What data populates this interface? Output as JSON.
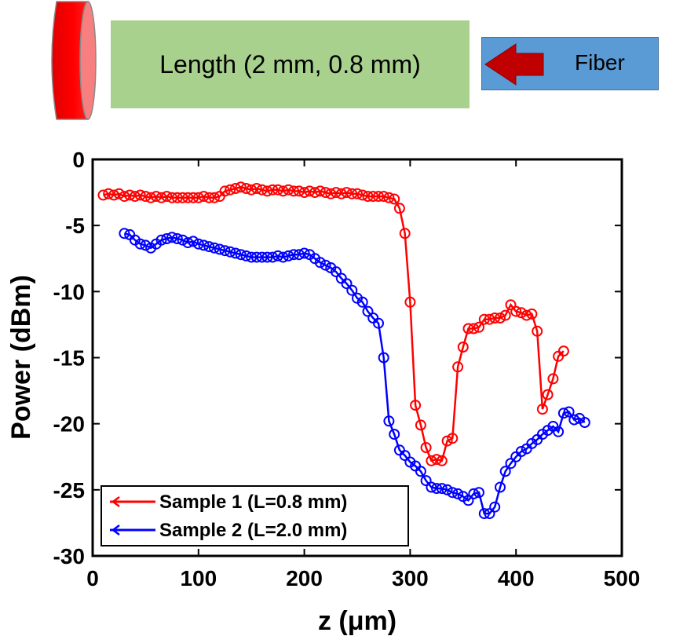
{
  "diagram": {
    "length_label": "Length (2 mm, 0.8 mm)",
    "fiber_label": "Fiber",
    "colors": {
      "disk": "#ff0000",
      "length_box": "#a9d18e",
      "fiber_box": "#5b9bd5",
      "arrow": "#c00000"
    }
  },
  "chart_data": {
    "type": "line",
    "xlabel": "z (μm)",
    "ylabel": "Power (dBm)",
    "xlim": [
      0,
      500
    ],
    "ylim": [
      -30,
      0
    ],
    "xticks": [
      0,
      100,
      200,
      300,
      400,
      500
    ],
    "yticks": [
      0,
      -5,
      -10,
      -15,
      -20,
      -25,
      -30
    ],
    "grid": false,
    "legend": "bottom-left",
    "series": [
      {
        "name": "Sample 1 (L=0.8 mm)",
        "color": "#ff0000",
        "x": [
          10,
          15,
          20,
          25,
          30,
          35,
          40,
          45,
          50,
          55,
          60,
          65,
          70,
          75,
          80,
          85,
          90,
          95,
          100,
          105,
          110,
          115,
          120,
          125,
          130,
          135,
          140,
          145,
          150,
          155,
          160,
          165,
          170,
          175,
          180,
          185,
          190,
          195,
          200,
          205,
          210,
          215,
          220,
          225,
          230,
          235,
          240,
          245,
          250,
          255,
          260,
          265,
          270,
          275,
          280,
          285,
          290,
          295,
          300,
          305,
          310,
          315,
          320,
          325,
          330,
          335,
          340,
          345,
          350,
          355,
          360,
          365,
          370,
          375,
          380,
          385,
          390,
          395,
          400,
          405,
          410,
          415,
          420,
          425,
          430,
          435,
          440,
          445
        ],
        "y": [
          -2.7,
          -2.6,
          -2.7,
          -2.6,
          -2.8,
          -2.7,
          -2.8,
          -2.7,
          -2.8,
          -2.9,
          -2.8,
          -2.9,
          -2.8,
          -2.9,
          -2.9,
          -2.9,
          -2.9,
          -2.9,
          -2.9,
          -2.8,
          -2.9,
          -2.9,
          -2.8,
          -2.4,
          -2.3,
          -2.2,
          -2.1,
          -2.2,
          -2.3,
          -2.2,
          -2.3,
          -2.4,
          -2.3,
          -2.3,
          -2.4,
          -2.3,
          -2.4,
          -2.4,
          -2.5,
          -2.4,
          -2.5,
          -2.4,
          -2.5,
          -2.6,
          -2.5,
          -2.6,
          -2.5,
          -2.6,
          -2.6,
          -2.7,
          -2.8,
          -2.8,
          -2.8,
          -2.8,
          -2.9,
          -3.0,
          -3.7,
          -5.6,
          -10.8,
          -18.6,
          -20.1,
          -21.8,
          -22.8,
          -22.7,
          -22.8,
          -21.3,
          -21.1,
          -15.7,
          -14.2,
          -12.8,
          -12.8,
          -12.7,
          -12.1,
          -12.1,
          -12.0,
          -12.0,
          -11.8,
          -11.0,
          -11.5,
          -11.6,
          -11.8,
          -11.7,
          -13.0,
          -18.9,
          -17.8,
          -16.6,
          -14.9,
          -14.5
        ]
      },
      {
        "name": "Sample 2 (L=2.0 mm)",
        "color": "#0000ff",
        "x": [
          30,
          35,
          40,
          45,
          50,
          55,
          60,
          65,
          70,
          75,
          80,
          85,
          90,
          95,
          100,
          105,
          110,
          115,
          120,
          125,
          130,
          135,
          140,
          145,
          150,
          155,
          160,
          165,
          170,
          175,
          180,
          185,
          190,
          195,
          200,
          205,
          210,
          215,
          220,
          225,
          230,
          235,
          240,
          245,
          250,
          255,
          260,
          265,
          270,
          275,
          280,
          285,
          290,
          295,
          300,
          305,
          310,
          315,
          320,
          325,
          330,
          335,
          340,
          345,
          350,
          355,
          360,
          365,
          370,
          375,
          380,
          385,
          390,
          395,
          400,
          405,
          410,
          415,
          420,
          425,
          430,
          435,
          440,
          445,
          450,
          455,
          460,
          465
        ],
        "y": [
          -5.6,
          -5.7,
          -6.1,
          -6.4,
          -6.5,
          -6.7,
          -6.4,
          -6.1,
          -6.0,
          -5.9,
          -6.0,
          -6.1,
          -6.3,
          -6.2,
          -6.4,
          -6.5,
          -6.6,
          -6.7,
          -6.8,
          -6.9,
          -7.0,
          -7.1,
          -7.2,
          -7.3,
          -7.4,
          -7.4,
          -7.4,
          -7.4,
          -7.4,
          -7.3,
          -7.4,
          -7.3,
          -7.2,
          -7.2,
          -7.1,
          -7.2,
          -7.5,
          -7.8,
          -8.0,
          -8.2,
          -8.5,
          -9.0,
          -9.4,
          -9.9,
          -10.5,
          -10.8,
          -11.5,
          -12.0,
          -12.4,
          -15.0,
          -19.8,
          -20.8,
          -22.0,
          -22.4,
          -22.9,
          -23.2,
          -23.6,
          -24.3,
          -24.8,
          -24.9,
          -24.9,
          -25.0,
          -25.2,
          -25.3,
          -25.5,
          -25.8,
          -25.3,
          -25.2,
          -26.8,
          -26.8,
          -26.3,
          -24.8,
          -23.6,
          -23.0,
          -22.5,
          -22.1,
          -21.9,
          -21.5,
          -21.2,
          -20.8,
          -20.5,
          -20.2,
          -20.6,
          -19.2,
          -19.1,
          -19.7,
          -19.6,
          -19.9
        ]
      }
    ]
  }
}
